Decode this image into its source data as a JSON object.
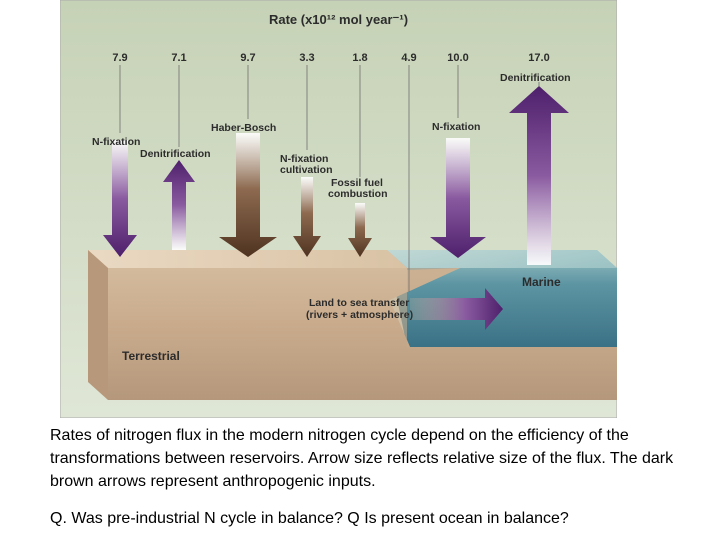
{
  "title": "Rate (x10¹² mol year⁻¹)",
  "fluxes": [
    {
      "rate": "7.9",
      "label": "N-fixation",
      "type": "natural",
      "direction": "down"
    },
    {
      "rate": "7.1",
      "label": "Denitrification",
      "type": "natural",
      "direction": "up"
    },
    {
      "rate": "9.7",
      "label": "Haber-Bosch",
      "type": "anthropogenic",
      "direction": "down"
    },
    {
      "rate": "3.3",
      "label": "N-fixation cultivation",
      "type": "anthropogenic",
      "direction": "down"
    },
    {
      "rate": "1.8",
      "label": "Fossil fuel combustion",
      "type": "anthropogenic",
      "direction": "down"
    },
    {
      "rate": "4.9",
      "label": "Land to sea transfer (rivers + atmosphere)",
      "type": "natural",
      "direction": "right"
    },
    {
      "rate": "10.0",
      "label": "N-fixation",
      "type": "natural",
      "direction": "down"
    },
    {
      "rate": "17.0",
      "label": "Denitrification",
      "type": "natural",
      "direction": "up"
    }
  ],
  "labels": {
    "nfix1": "N-fixation",
    "denit1": "Denitrification",
    "haber": "Haber-Bosch",
    "nfixcult_1": "N-fixation",
    "nfixcult_2": "cultivation",
    "fossil_1": "Fossil fuel",
    "fossil_2": "combustion",
    "nfix2": "N-fixation",
    "denit2": "Denitrification",
    "land_sea_1": "Land to sea transfer",
    "land_sea_2": "(rivers + atmosphere)",
    "marine": "Marine",
    "terrestrial": "Terrestrial"
  },
  "caption": "Rates of nitrogen flux in the modern nitrogen cycle depend on the efficiency of the transformations between reservoirs. Arrow size reflects relative size of the flux. The dark brown arrows represent anthropogenic inputs.",
  "question": "Q. Was pre-industrial N cycle in balance? Q Is present ocean in balance?",
  "colors": {
    "natural": "#5e2a78",
    "anthropogenic": "#5a3a24",
    "background": "#ccd7bf",
    "land": "#c8a988",
    "ocean": "#4d8394"
  }
}
